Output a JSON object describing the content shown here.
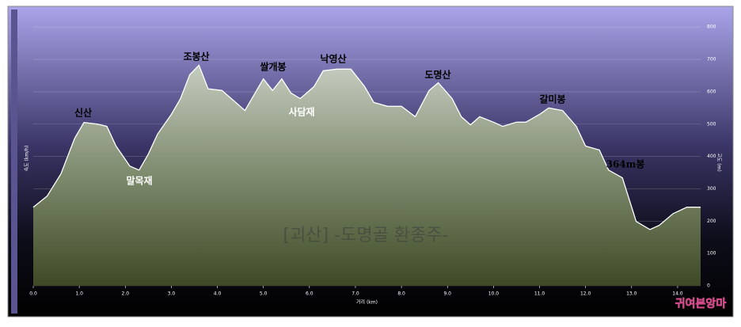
{
  "chart_data": {
    "type": "area",
    "x_label": "거리 (km)",
    "y_label": "고도 (m)",
    "y2_label": "속도 (km/h)",
    "x": [
      0.0,
      0.3,
      0.6,
      0.9,
      1.1,
      1.4,
      1.6,
      1.8,
      2.1,
      2.3,
      2.5,
      2.7,
      3.0,
      3.2,
      3.4,
      3.6,
      3.8,
      4.1,
      4.4,
      4.6,
      4.9,
      5.0,
      5.2,
      5.4,
      5.6,
      5.8,
      6.1,
      6.3,
      6.6,
      6.9,
      7.2,
      7.4,
      7.7,
      8.0,
      8.3,
      8.6,
      8.8,
      9.1,
      9.3,
      9.5,
      9.7,
      10.0,
      10.2,
      10.5,
      10.7,
      11.0,
      11.2,
      11.5,
      11.8,
      12.0,
      12.3,
      12.5,
      12.8,
      13.1,
      13.4,
      13.6,
      13.9,
      14.2,
      14.5
    ],
    "values": [
      243,
      277,
      346,
      456,
      505,
      500,
      493,
      432,
      370,
      358,
      407,
      469,
      530,
      579,
      653,
      682,
      609,
      604,
      567,
      542,
      616,
      640,
      604,
      640,
      596,
      579,
      616,
      665,
      670,
      670,
      616,
      567,
      555,
      555,
      523,
      604,
      628,
      579,
      523,
      498,
      523,
      506,
      493,
      506,
      506,
      530,
      550,
      542,
      493,
      432,
      420,
      358,
      334,
      199,
      174,
      187,
      223,
      243,
      243
    ],
    "color": "#ffffff",
    "grid": true,
    "xlim": [
      0,
      14.5
    ],
    "ylim": [
      0,
      825
    ],
    "xticks": [
      {
        "value": 0,
        "label": "0.0"
      },
      {
        "value": 1,
        "label": "1.0"
      },
      {
        "value": 2,
        "label": "2.0"
      },
      {
        "value": 3,
        "label": "3.0"
      },
      {
        "value": 4,
        "label": "4.0"
      },
      {
        "value": 5,
        "label": "5.0"
      },
      {
        "value": 6,
        "label": "6.0"
      },
      {
        "value": 7,
        "label": "7.0"
      },
      {
        "value": 8,
        "label": "8.0"
      },
      {
        "value": 9,
        "label": "9.0"
      },
      {
        "value": 10,
        "label": "10.0"
      },
      {
        "value": 11,
        "label": "11.0"
      },
      {
        "value": 12,
        "label": "12.0"
      },
      {
        "value": 13,
        "label": "13.0"
      },
      {
        "value": 14,
        "label": "14.0"
      }
    ],
    "yticks": [
      0,
      100,
      200,
      300,
      400,
      500,
      600,
      700,
      800
    ],
    "annotations": [
      "신산",
      "말목재",
      "조봉산",
      "쌀개봉",
      "낙영산",
      "사담재",
      "도명산",
      "갈미봉",
      "364m봉"
    ],
    "watermark": "[괴산] -도명골 환종주-",
    "logo": "귀여븐앙마"
  }
}
